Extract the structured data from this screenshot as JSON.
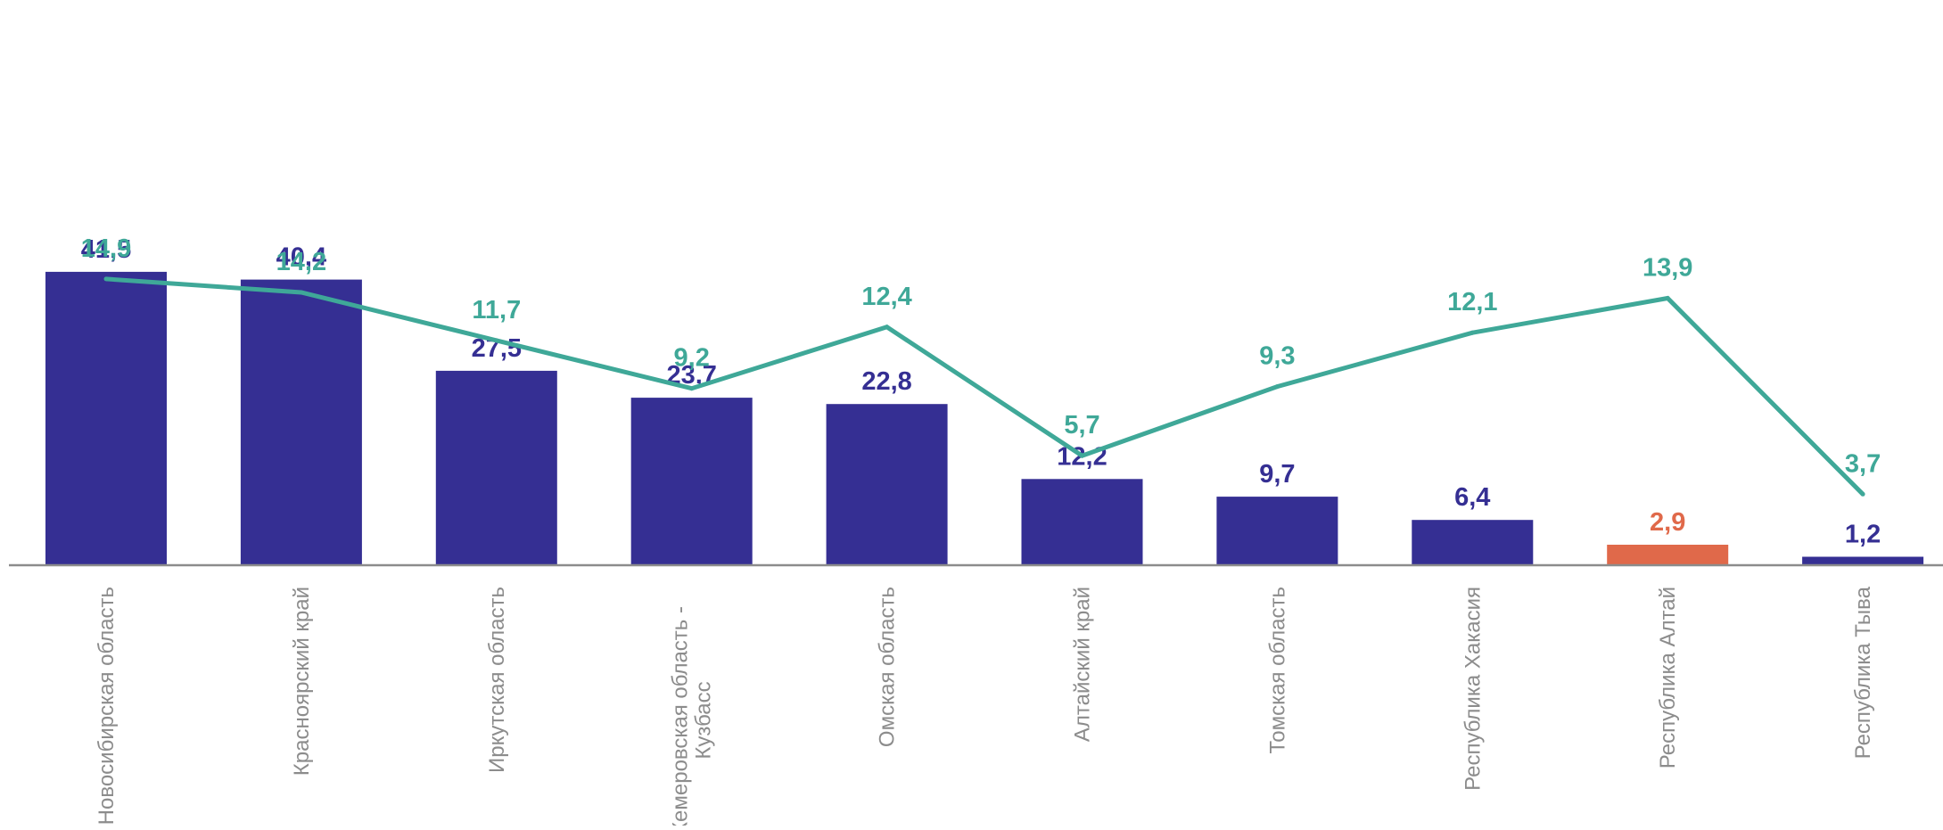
{
  "chart_data": {
    "type": "bar",
    "categories": [
      "Новосибирская область",
      "Красноярский край",
      "Иркутская область",
      "Кемеровская область - Кузбасс",
      "Омская область",
      "Алтайский край",
      "Томская область",
      "Республика Хакасия",
      "Республика Алтай",
      "Республика Тыва"
    ],
    "category_label_lines": [
      [
        "Новосибирская область"
      ],
      [
        "Красноярский край"
      ],
      [
        "Иркутская область"
      ],
      [
        "Кемеровская область -",
        "Кузбасс"
      ],
      [
        "Омская область"
      ],
      [
        "Алтайский край"
      ],
      [
        "Томская область"
      ],
      [
        "Республика Хакасия"
      ],
      [
        "Республика Алтай"
      ],
      [
        "Республика Тыва"
      ]
    ],
    "series": [
      {
        "type": "bar",
        "values": [
          41.5,
          40.4,
          27.5,
          23.7,
          22.8,
          12.2,
          9.7,
          6.4,
          2.9,
          1.2
        ],
        "labels": [
          "41,5",
          "40,4",
          "27,5",
          "23,7",
          "22,8",
          "12,2",
          "9,7",
          "6,4",
          "2,9",
          "1,2"
        ],
        "color": "#352f93",
        "highlight_index": 8,
        "highlight_color": "#e0694a"
      },
      {
        "type": "line",
        "values": [
          14.9,
          14.2,
          11.7,
          9.2,
          12.4,
          5.7,
          9.3,
          12.1,
          13.9,
          3.7
        ],
        "labels": [
          "14,9",
          "14,2",
          "11,7",
          "9,2",
          "12,4",
          "5,7",
          "9,3",
          "12,1",
          "13,9",
          "3,7"
        ],
        "color": "#3fa898"
      }
    ],
    "axis_color": "#8c8c8c",
    "grid": false,
    "legend": "none"
  }
}
